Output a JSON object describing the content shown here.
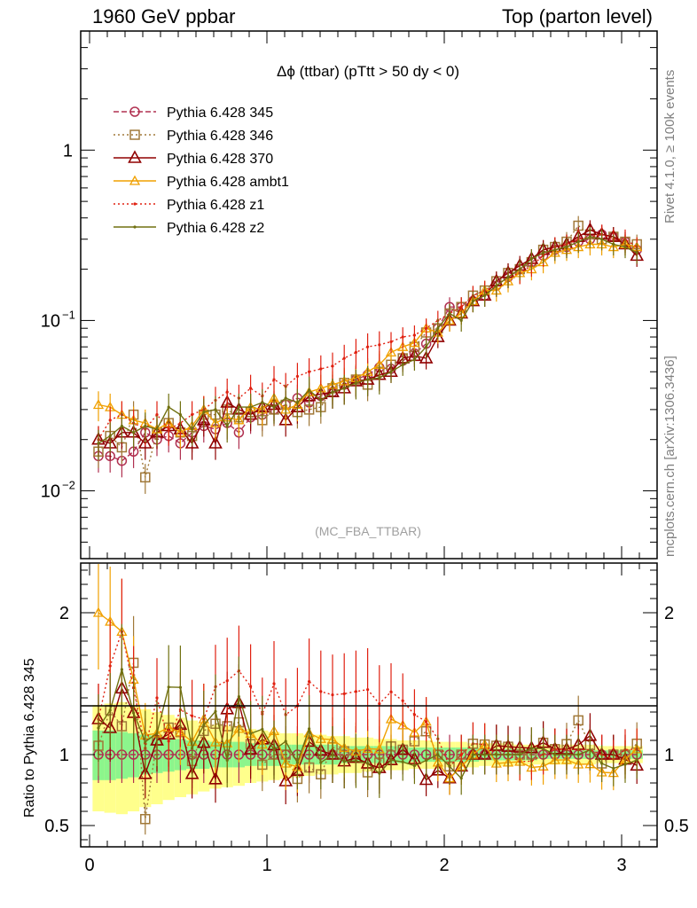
{
  "header": {
    "left": "1960 GeV ppbar",
    "right": "Top (parton level)"
  },
  "side_labels": {
    "version": "Rivet 4.1.0, ≥ 100k events",
    "source": "mcplots.cern.ch [arXiv:1306.3436]"
  },
  "watermark": "(MC_FBA_TTBAR)",
  "colors": {
    "band_inner": "#8cf58c",
    "band_outer": "#ffff8c"
  },
  "chart_data": {
    "type": "line",
    "title": "Δϕ (ttbar) (pTtt > 50 dy < 0)",
    "xlabel": "",
    "ylabel": "",
    "ratio_ylabel": "Ratio to Pythia 6.428 345",
    "xlim": [
      -0.05,
      3.2
    ],
    "ylim": [
      0.004,
      5
    ],
    "yscale": "log",
    "ratio_ylim": [
      0.35,
      2.35
    ],
    "x_ticks": [
      "0",
      "1",
      "2",
      "3"
    ],
    "y_ticks": [
      {
        "value": 1,
        "label": "1"
      },
      {
        "value": 0.1,
        "label": "10",
        "exp": "−1"
      },
      {
        "value": 0.01,
        "label": "10",
        "exp": "−2"
      }
    ],
    "ratio_ticks": [
      "0.5",
      "1",
      "2"
    ],
    "x": [
      0.05,
      0.116,
      0.182,
      0.248,
      0.314,
      0.38,
      0.446,
      0.512,
      0.578,
      0.644,
      0.71,
      0.776,
      0.842,
      0.908,
      0.974,
      1.04,
      1.106,
      1.172,
      1.238,
      1.304,
      1.37,
      1.436,
      1.502,
      1.568,
      1.634,
      1.7,
      1.766,
      1.832,
      1.898,
      1.964,
      2.03,
      2.096,
      2.162,
      2.228,
      2.294,
      2.36,
      2.426,
      2.492,
      2.558,
      2.624,
      2.69,
      2.756,
      2.822,
      2.888,
      2.954,
      3.02,
      3.086
    ],
    "series": [
      {
        "name": "Pythia 6.428 345",
        "color": "#b03050",
        "marker": "circle",
        "dash": "6,3",
        "values": [
          0.016,
          0.016,
          0.015,
          0.017,
          0.022,
          0.02,
          0.021,
          0.019,
          0.022,
          0.024,
          0.023,
          0.025,
          0.022,
          0.027,
          0.028,
          0.03,
          0.032,
          0.035,
          0.033,
          0.036,
          0.038,
          0.042,
          0.045,
          0.048,
          0.053,
          0.052,
          0.058,
          0.064,
          0.073,
          0.09,
          0.12,
          0.12,
          0.13,
          0.14,
          0.16,
          0.18,
          0.2,
          0.22,
          0.24,
          0.26,
          0.27,
          0.29,
          0.3,
          0.32,
          0.31,
          0.29,
          0.26
        ]
      },
      {
        "name": "Pythia 6.428 346",
        "color": "#a07838",
        "marker": "square",
        "dash": "2,3",
        "values": [
          0.017,
          0.021,
          0.018,
          0.028,
          0.012,
          0.022,
          0.025,
          0.022,
          0.021,
          0.028,
          0.028,
          0.03,
          0.027,
          0.029,
          0.026,
          0.03,
          0.032,
          0.029,
          0.03,
          0.031,
          0.04,
          0.043,
          0.045,
          0.042,
          0.05,
          0.055,
          0.06,
          0.07,
          0.085,
          0.09,
          0.11,
          0.12,
          0.14,
          0.15,
          0.17,
          0.19,
          0.2,
          0.22,
          0.26,
          0.27,
          0.29,
          0.36,
          0.32,
          0.3,
          0.31,
          0.29,
          0.28
        ]
      },
      {
        "name": "Pythia 6.428 370",
        "color": "#900000",
        "marker": "triangle",
        "dash": "",
        "values": [
          0.02,
          0.019,
          0.022,
          0.022,
          0.019,
          0.022,
          0.024,
          0.023,
          0.019,
          0.026,
          0.019,
          0.033,
          0.03,
          0.028,
          0.031,
          0.032,
          0.026,
          0.031,
          0.036,
          0.037,
          0.038,
          0.04,
          0.044,
          0.045,
          0.048,
          0.05,
          0.06,
          0.062,
          0.06,
          0.08,
          0.1,
          0.11,
          0.13,
          0.14,
          0.17,
          0.19,
          0.21,
          0.23,
          0.26,
          0.27,
          0.28,
          0.31,
          0.34,
          0.32,
          0.31,
          0.28,
          0.24
        ]
      },
      {
        "name": "Pythia 6.428 ambt1",
        "color": "#f0a000",
        "marker": "triangle-open",
        "dash": "",
        "values": [
          0.032,
          0.031,
          0.028,
          0.026,
          0.025,
          0.023,
          0.025,
          0.022,
          0.024,
          0.03,
          0.025,
          0.027,
          0.026,
          0.031,
          0.03,
          0.035,
          0.03,
          0.032,
          0.038,
          0.04,
          0.042,
          0.044,
          0.046,
          0.05,
          0.055,
          0.065,
          0.07,
          0.074,
          0.09,
          0.085,
          0.1,
          0.11,
          0.13,
          0.15,
          0.15,
          0.17,
          0.19,
          0.2,
          0.22,
          0.25,
          0.26,
          0.27,
          0.28,
          0.28,
          0.27,
          0.28,
          0.27
        ]
      },
      {
        "name": "Pythia 6.428 z1",
        "color": "#e02010",
        "marker": "dot",
        "dash": "2,3",
        "values": [
          0.02,
          0.026,
          0.028,
          0.025,
          0.023,
          0.028,
          0.023,
          0.025,
          0.028,
          0.03,
          0.034,
          0.038,
          0.035,
          0.04,
          0.036,
          0.045,
          0.041,
          0.047,
          0.05,
          0.052,
          0.054,
          0.06,
          0.065,
          0.07,
          0.072,
          0.075,
          0.08,
          0.082,
          0.09,
          0.1,
          0.11,
          0.12,
          0.14,
          0.15,
          0.16,
          0.18,
          0.19,
          0.21,
          0.24,
          0.27,
          0.28,
          0.3,
          0.31,
          0.32,
          0.3,
          0.3,
          0.27
        ]
      },
      {
        "name": "Pythia 6.428 z2",
        "color": "#707010",
        "marker": "dot",
        "dash": "",
        "values": [
          0.019,
          0.021,
          0.024,
          0.022,
          0.024,
          0.023,
          0.031,
          0.028,
          0.023,
          0.029,
          0.03,
          0.024,
          0.031,
          0.031,
          0.033,
          0.031,
          0.035,
          0.033,
          0.039,
          0.034,
          0.038,
          0.04,
          0.043,
          0.045,
          0.046,
          0.05,
          0.055,
          0.059,
          0.07,
          0.09,
          0.11,
          0.1,
          0.13,
          0.14,
          0.16,
          0.18,
          0.2,
          0.23,
          0.25,
          0.26,
          0.27,
          0.29,
          0.31,
          0.3,
          0.28,
          0.27,
          0.25
        ]
      }
    ],
    "band": {
      "inner_lo": [
        0.82,
        0.82,
        0.83,
        0.84,
        0.86,
        0.87,
        0.88,
        0.89,
        0.9,
        0.9,
        0.91,
        0.91,
        0.91,
        0.92,
        0.92,
        0.92,
        0.93,
        0.93,
        0.93,
        0.93,
        0.93,
        0.94,
        0.94,
        0.94,
        0.94,
        0.94,
        0.94,
        0.95,
        0.95,
        0.95,
        0.95,
        0.95,
        0.95,
        0.96,
        0.96,
        0.96,
        0.96,
        0.96,
        0.97,
        0.97,
        0.97,
        0.97,
        0.97,
        0.97,
        0.97,
        0.97,
        0.97
      ],
      "inner_hi": [
        1.17,
        1.17,
        1.16,
        1.15,
        1.14,
        1.13,
        1.12,
        1.11,
        1.1,
        1.1,
        1.09,
        1.09,
        1.09,
        1.08,
        1.08,
        1.08,
        1.07,
        1.07,
        1.07,
        1.07,
        1.07,
        1.06,
        1.06,
        1.06,
        1.06,
        1.06,
        1.06,
        1.05,
        1.05,
        1.05,
        1.05,
        1.05,
        1.05,
        1.04,
        1.04,
        1.04,
        1.04,
        1.04,
        1.03,
        1.03,
        1.03,
        1.03,
        1.03,
        1.03,
        1.03,
        1.03,
        1.03
      ],
      "outer_lo": [
        0.6,
        0.59,
        0.58,
        0.6,
        0.63,
        0.65,
        0.68,
        0.7,
        0.72,
        0.74,
        0.76,
        0.77,
        0.78,
        0.8,
        0.81,
        0.82,
        0.83,
        0.84,
        0.85,
        0.86,
        0.86,
        0.87,
        0.87,
        0.88,
        0.88,
        0.89,
        0.89,
        0.9,
        0.9,
        0.9,
        0.91,
        0.91,
        0.91,
        0.92,
        0.92,
        0.92,
        0.93,
        0.93,
        0.93,
        0.93,
        0.93,
        0.93,
        0.93,
        0.94,
        0.94,
        0.94,
        0.94
      ],
      "outer_hi": [
        1.35,
        1.36,
        1.37,
        1.35,
        1.32,
        1.3,
        1.28,
        1.26,
        1.24,
        1.22,
        1.21,
        1.2,
        1.19,
        1.18,
        1.17,
        1.16,
        1.15,
        1.15,
        1.14,
        1.14,
        1.13,
        1.13,
        1.12,
        1.12,
        1.11,
        1.11,
        1.1,
        1.1,
        1.1,
        1.09,
        1.09,
        1.09,
        1.08,
        1.08,
        1.08,
        1.08,
        1.07,
        1.07,
        1.07,
        1.07,
        1.07,
        1.07,
        1.07,
        1.06,
        1.06,
        1.06,
        1.06
      ]
    }
  }
}
